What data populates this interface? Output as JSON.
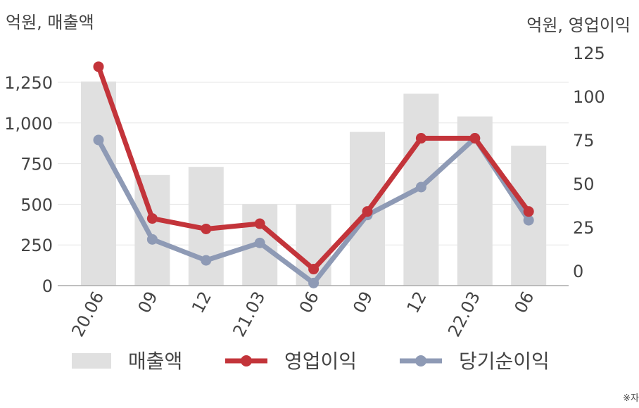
{
  "units": {
    "left": "억원, 매출액",
    "right": "억원, 영업이익"
  },
  "footnote": "※자",
  "chart_data": {
    "type": "bar+line",
    "categories": [
      "20.06",
      "09",
      "12",
      "21.03",
      "06",
      "09",
      "12",
      "22.03",
      "06"
    ],
    "series": [
      {
        "name": "매출액",
        "kind": "bar",
        "axis": "left",
        "color": "#e0e0e0",
        "values": [
          1255,
          680,
          730,
          500,
          500,
          945,
          1180,
          1040,
          860
        ]
      },
      {
        "name": "영업이익",
        "kind": "line",
        "axis": "right",
        "color": "#c3343a",
        "values": [
          117,
          30,
          24,
          27,
          1,
          34,
          76,
          76,
          34
        ]
      },
      {
        "name": "당기순이익",
        "kind": "line",
        "axis": "right",
        "color": "#8e9ab5",
        "values": [
          75,
          18,
          6,
          16,
          -7,
          32,
          48,
          76,
          29
        ]
      }
    ],
    "y_left": {
      "min": 0,
      "max": 1250,
      "ticks": [
        "0",
        "250",
        "500",
        "750",
        "1,000",
        "1,250"
      ]
    },
    "y_right": {
      "min": 0,
      "max": 125,
      "ticks": [
        "0",
        "25",
        "50",
        "75",
        "100",
        "125"
      ]
    },
    "grid": true,
    "legend": "bottom"
  }
}
